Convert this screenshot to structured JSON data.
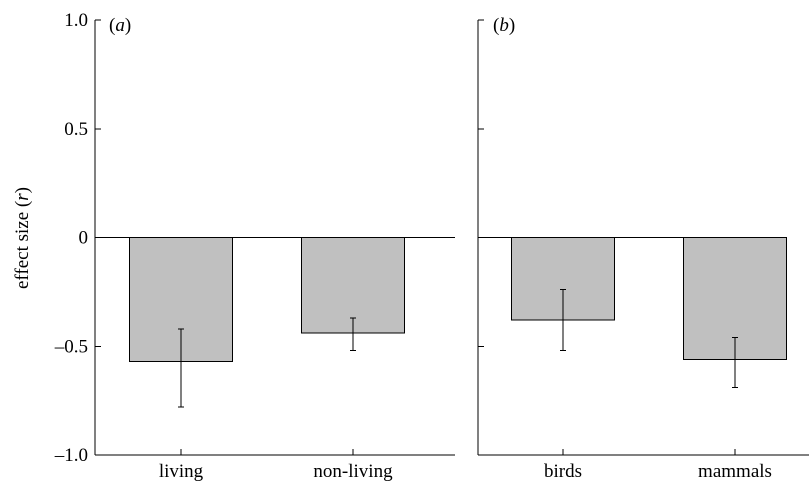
{
  "chart_data": [
    {
      "type": "bar",
      "panel_label": "(a)",
      "categories": [
        "living",
        "non-living"
      ],
      "values": [
        -0.57,
        -0.44
      ],
      "error_lower": [
        -0.78,
        -0.52
      ],
      "error_upper": [
        -0.42,
        -0.37
      ],
      "ylabel": "effect size (r)",
      "ylim": [
        -1.0,
        1.0
      ],
      "yticks": [
        1.0,
        0.5,
        0,
        -0.5,
        -1.0
      ],
      "ytick_labels": [
        "1.0",
        "0.5",
        "0",
        "–0.5",
        "–1.0"
      ],
      "grid": false
    },
    {
      "type": "bar",
      "panel_label": "(b)",
      "categories": [
        "birds",
        "mammals"
      ],
      "values": [
        -0.38,
        -0.56
      ],
      "error_lower": [
        -0.52,
        -0.69
      ],
      "error_upper": [
        -0.24,
        -0.46
      ],
      "ylim": [
        -1.0,
        1.0
      ],
      "yticks": [
        1.0,
        0.5,
        0,
        -0.5,
        -1.0
      ],
      "grid": false
    }
  ],
  "colors": {
    "bar_fill": "#c0c0c0",
    "axis": "#000000"
  }
}
